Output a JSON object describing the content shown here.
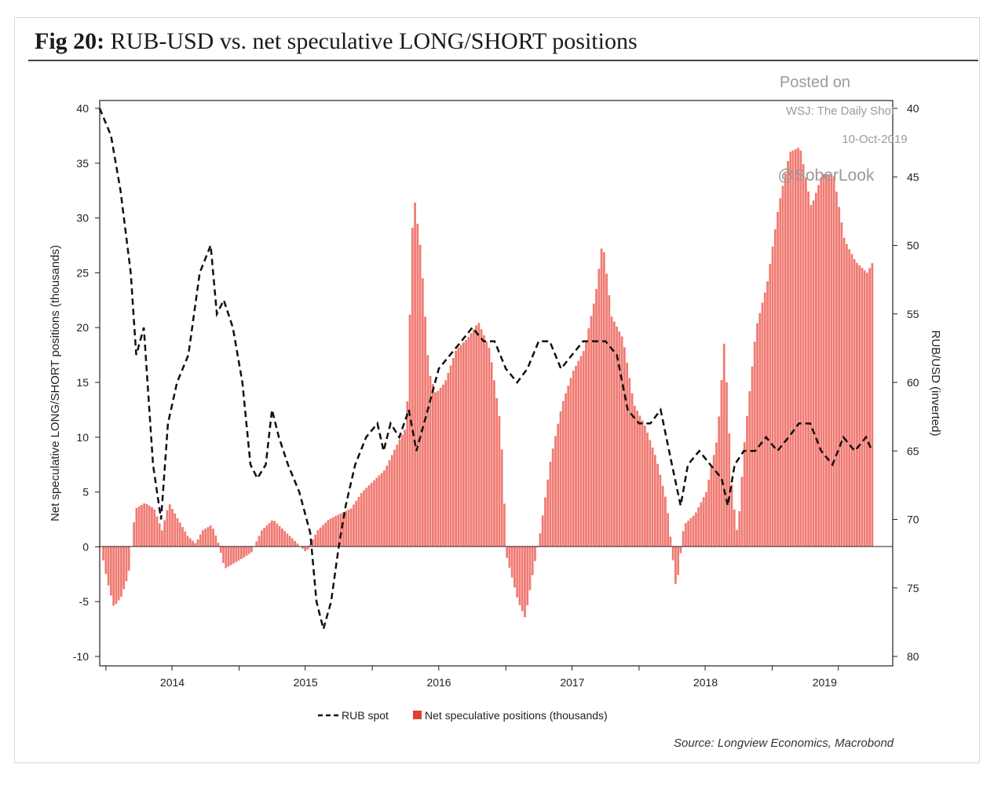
{
  "title": {
    "prefix": "Fig 20:",
    "text": "RUB-USD vs. net speculative LONG/SHORT positions"
  },
  "watermark": {
    "line1": "Posted on",
    "line2": "WSJ: The Daily Shot",
    "line3": "10-Oct-2019",
    "line4": "@SoberLook"
  },
  "source": "Source: Longview Economics, Macrobond",
  "colors": {
    "bars": "#f07a72",
    "line": "#111111",
    "axis": "#222222"
  },
  "chart_data": {
    "type": "bar+line",
    "ylabel_left": "Net speculative LONG/SHORT positions (thousands)",
    "ylabel_right": "RUB/USD (inverted)",
    "ylim_left": [
      -10,
      40
    ],
    "yticks_left": [
      40,
      35,
      30,
      25,
      20,
      15,
      10,
      5,
      0,
      -5,
      -10
    ],
    "ylim_right_inverted": [
      40,
      80
    ],
    "yticks_right": [
      40,
      45,
      50,
      55,
      60,
      65,
      70,
      75,
      80
    ],
    "xlim": [
      "2013-12-15",
      "2019-10-15"
    ],
    "xticks": [
      "2014",
      "2015",
      "2016",
      "2017",
      "2018",
      "2019"
    ],
    "legend": {
      "placement": "bottom-center",
      "line_label": "RUB spot",
      "bar_label": "Net speculative positions (thousands)"
    },
    "series": [
      {
        "name": "Net speculative positions (thousands)",
        "kind": "bar",
        "axis": "left",
        "points": [
          [
            "2013-12-15",
            0
          ],
          [
            "2014-01-01",
            -3
          ],
          [
            "2014-01-20",
            -5.5
          ],
          [
            "2014-02-10",
            -4.5
          ],
          [
            "2014-03-01",
            -2.5
          ],
          [
            "2014-03-20",
            3.5
          ],
          [
            "2014-04-15",
            4
          ],
          [
            "2014-05-10",
            3.5
          ],
          [
            "2014-06-01",
            1.5
          ],
          [
            "2014-06-20",
            4
          ],
          [
            "2014-07-15",
            2.5
          ],
          [
            "2014-08-10",
            1
          ],
          [
            "2014-09-01",
            0.3
          ],
          [
            "2014-09-20",
            1.5
          ],
          [
            "2014-10-15",
            2
          ],
          [
            "2014-11-01",
            0.5
          ],
          [
            "2014-11-20",
            -2
          ],
          [
            "2014-12-15",
            -1.5
          ],
          [
            "2015-01-10",
            -1
          ],
          [
            "2015-02-01",
            -0.5
          ],
          [
            "2015-03-01",
            1.5
          ],
          [
            "2015-04-01",
            2.5
          ],
          [
            "2015-05-01",
            1.5
          ],
          [
            "2015-06-01",
            0.5
          ],
          [
            "2015-07-01",
            -0.5
          ],
          [
            "2015-08-01",
            1.5
          ],
          [
            "2015-09-01",
            2.5
          ],
          [
            "2015-10-01",
            3
          ],
          [
            "2015-11-01",
            3.5
          ],
          [
            "2015-12-01",
            5
          ],
          [
            "2016-01-01",
            6
          ],
          [
            "2016-02-01",
            7
          ],
          [
            "2016-03-01",
            9
          ],
          [
            "2016-04-01",
            11
          ],
          [
            "2016-04-20",
            32.5
          ],
          [
            "2016-05-10",
            27
          ],
          [
            "2016-06-01",
            16
          ],
          [
            "2016-06-20",
            14
          ],
          [
            "2016-07-15",
            15
          ],
          [
            "2016-08-15",
            18
          ],
          [
            "2016-09-15",
            19
          ],
          [
            "2016-10-15",
            20.5
          ],
          [
            "2016-11-15",
            18
          ],
          [
            "2016-12-15",
            11
          ],
          [
            "2017-01-01",
            -1
          ],
          [
            "2017-02-01",
            -5
          ],
          [
            "2017-02-20",
            -6.5
          ],
          [
            "2017-03-15",
            -2
          ],
          [
            "2017-04-01",
            1
          ],
          [
            "2017-05-01",
            8
          ],
          [
            "2017-06-01",
            13
          ],
          [
            "2017-07-01",
            16
          ],
          [
            "2017-08-01",
            18
          ],
          [
            "2017-09-01",
            23
          ],
          [
            "2017-09-20",
            28
          ],
          [
            "2017-10-15",
            21
          ],
          [
            "2017-11-15",
            19
          ],
          [
            "2017-12-15",
            13
          ],
          [
            "2018-01-15",
            11
          ],
          [
            "2018-02-15",
            8
          ],
          [
            "2018-03-15",
            4
          ],
          [
            "2018-04-10",
            -4
          ],
          [
            "2018-05-01",
            2
          ],
          [
            "2018-06-01",
            3
          ],
          [
            "2018-07-01",
            5
          ],
          [
            "2018-08-01",
            10
          ],
          [
            "2018-08-20",
            19
          ],
          [
            "2018-09-10",
            5
          ],
          [
            "2018-09-25",
            1
          ],
          [
            "2018-10-15",
            10
          ],
          [
            "2018-11-15",
            20
          ],
          [
            "2018-12-15",
            24
          ],
          [
            "2019-01-15",
            31
          ],
          [
            "2019-02-15",
            36
          ],
          [
            "2019-03-15",
            36.5
          ],
          [
            "2019-04-15",
            31
          ],
          [
            "2019-05-15",
            34
          ],
          [
            "2019-06-15",
            34
          ],
          [
            "2019-07-15",
            28
          ],
          [
            "2019-08-15",
            26
          ],
          [
            "2019-09-15",
            25
          ],
          [
            "2019-10-01",
            26
          ]
        ]
      },
      {
        "name": "RUB spot",
        "kind": "line",
        "axis": "right_inverted",
        "points": [
          [
            "2013-12-15",
            40
          ],
          [
            "2014-01-15",
            42
          ],
          [
            "2014-02-10",
            46
          ],
          [
            "2014-03-10",
            52
          ],
          [
            "2014-03-25",
            58
          ],
          [
            "2014-04-15",
            56
          ],
          [
            "2014-05-10",
            66
          ],
          [
            "2014-06-01",
            70
          ],
          [
            "2014-06-20",
            63
          ],
          [
            "2014-07-15",
            60
          ],
          [
            "2014-08-15",
            58
          ],
          [
            "2014-09-15",
            52
          ],
          [
            "2014-10-15",
            50
          ],
          [
            "2014-11-01",
            55
          ],
          [
            "2014-11-20",
            54
          ],
          [
            "2014-12-15",
            56
          ],
          [
            "2015-01-10",
            60
          ],
          [
            "2015-02-01",
            66
          ],
          [
            "2015-02-20",
            67
          ],
          [
            "2015-03-15",
            66
          ],
          [
            "2015-04-01",
            62
          ],
          [
            "2015-04-20",
            64
          ],
          [
            "2015-05-15",
            66
          ],
          [
            "2015-06-15",
            68
          ],
          [
            "2015-07-15",
            71
          ],
          [
            "2015-08-01",
            76
          ],
          [
            "2015-08-20",
            78
          ],
          [
            "2015-09-10",
            76
          ],
          [
            "2015-10-01",
            72
          ],
          [
            "2015-10-20",
            69
          ],
          [
            "2015-11-15",
            66
          ],
          [
            "2015-12-15",
            64
          ],
          [
            "2016-01-15",
            63
          ],
          [
            "2016-02-01",
            65
          ],
          [
            "2016-02-20",
            63
          ],
          [
            "2016-03-15",
            64
          ],
          [
            "2016-04-10",
            62
          ],
          [
            "2016-05-01",
            65
          ],
          [
            "2016-06-01",
            62
          ],
          [
            "2016-07-01",
            59
          ],
          [
            "2016-08-01",
            58
          ],
          [
            "2016-09-01",
            57
          ],
          [
            "2016-10-01",
            56
          ],
          [
            "2016-11-01",
            57
          ],
          [
            "2016-12-01",
            57
          ],
          [
            "2017-01-01",
            59
          ],
          [
            "2017-02-01",
            60
          ],
          [
            "2017-03-01",
            59
          ],
          [
            "2017-04-01",
            57
          ],
          [
            "2017-05-01",
            57
          ],
          [
            "2017-06-01",
            59
          ],
          [
            "2017-07-01",
            58
          ],
          [
            "2017-08-01",
            57
          ],
          [
            "2017-09-01",
            57
          ],
          [
            "2017-10-01",
            57
          ],
          [
            "2017-11-01",
            58
          ],
          [
            "2017-12-01",
            62
          ],
          [
            "2018-01-01",
            63
          ],
          [
            "2018-02-01",
            63
          ],
          [
            "2018-03-01",
            62
          ],
          [
            "2018-04-01",
            66
          ],
          [
            "2018-04-25",
            69
          ],
          [
            "2018-05-15",
            66
          ],
          [
            "2018-06-15",
            65
          ],
          [
            "2018-07-15",
            66
          ],
          [
            "2018-08-15",
            67
          ],
          [
            "2018-09-01",
            69
          ],
          [
            "2018-09-20",
            66
          ],
          [
            "2018-10-15",
            65
          ],
          [
            "2018-11-15",
            65
          ],
          [
            "2018-12-15",
            64
          ],
          [
            "2019-01-15",
            65
          ],
          [
            "2019-02-15",
            64
          ],
          [
            "2019-03-15",
            63
          ],
          [
            "2019-04-15",
            63
          ],
          [
            "2019-05-15",
            65
          ],
          [
            "2019-06-15",
            66
          ],
          [
            "2019-07-15",
            64
          ],
          [
            "2019-08-15",
            65
          ],
          [
            "2019-09-15",
            64
          ],
          [
            "2019-10-01",
            65
          ]
        ]
      }
    ]
  }
}
